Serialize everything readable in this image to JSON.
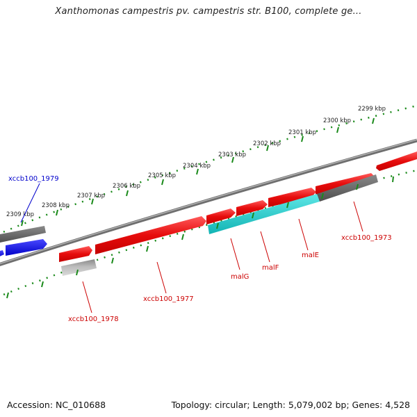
{
  "title": "Xanthomonas campestris pv. campestris str. B100, complete ge...",
  "footer": {
    "accession": "Accession: NC_010688",
    "stats": "Topology: circular; Length: 5,079,002 bp; Genes: 4,528"
  },
  "ticks": [
    "2299 kbp",
    "2300 kbp",
    "2301 kbp",
    "2302 kbp",
    "2303 kbp",
    "2304 kbp",
    "2305 kbp",
    "2306 kbp",
    "2307 kbp",
    "2308 kbp",
    "2309 kbp"
  ],
  "gene_labels": [
    "xccb100_1979",
    "xccb100_1978",
    "xccb100_1977",
    "malG",
    "malF",
    "malE",
    "xccb100_1973"
  ],
  "colors": {
    "backbone": "#777777",
    "ruler": "#1a8a1a",
    "forward_gene": "#e80c0c",
    "reverse_gene": "#e80c0c",
    "blue_gene": "#1212e0",
    "cyan_gene": "#18c8c8",
    "gray_gene": "#666666",
    "label_red": "#cc0000",
    "label_blue": "#0000cc"
  }
}
